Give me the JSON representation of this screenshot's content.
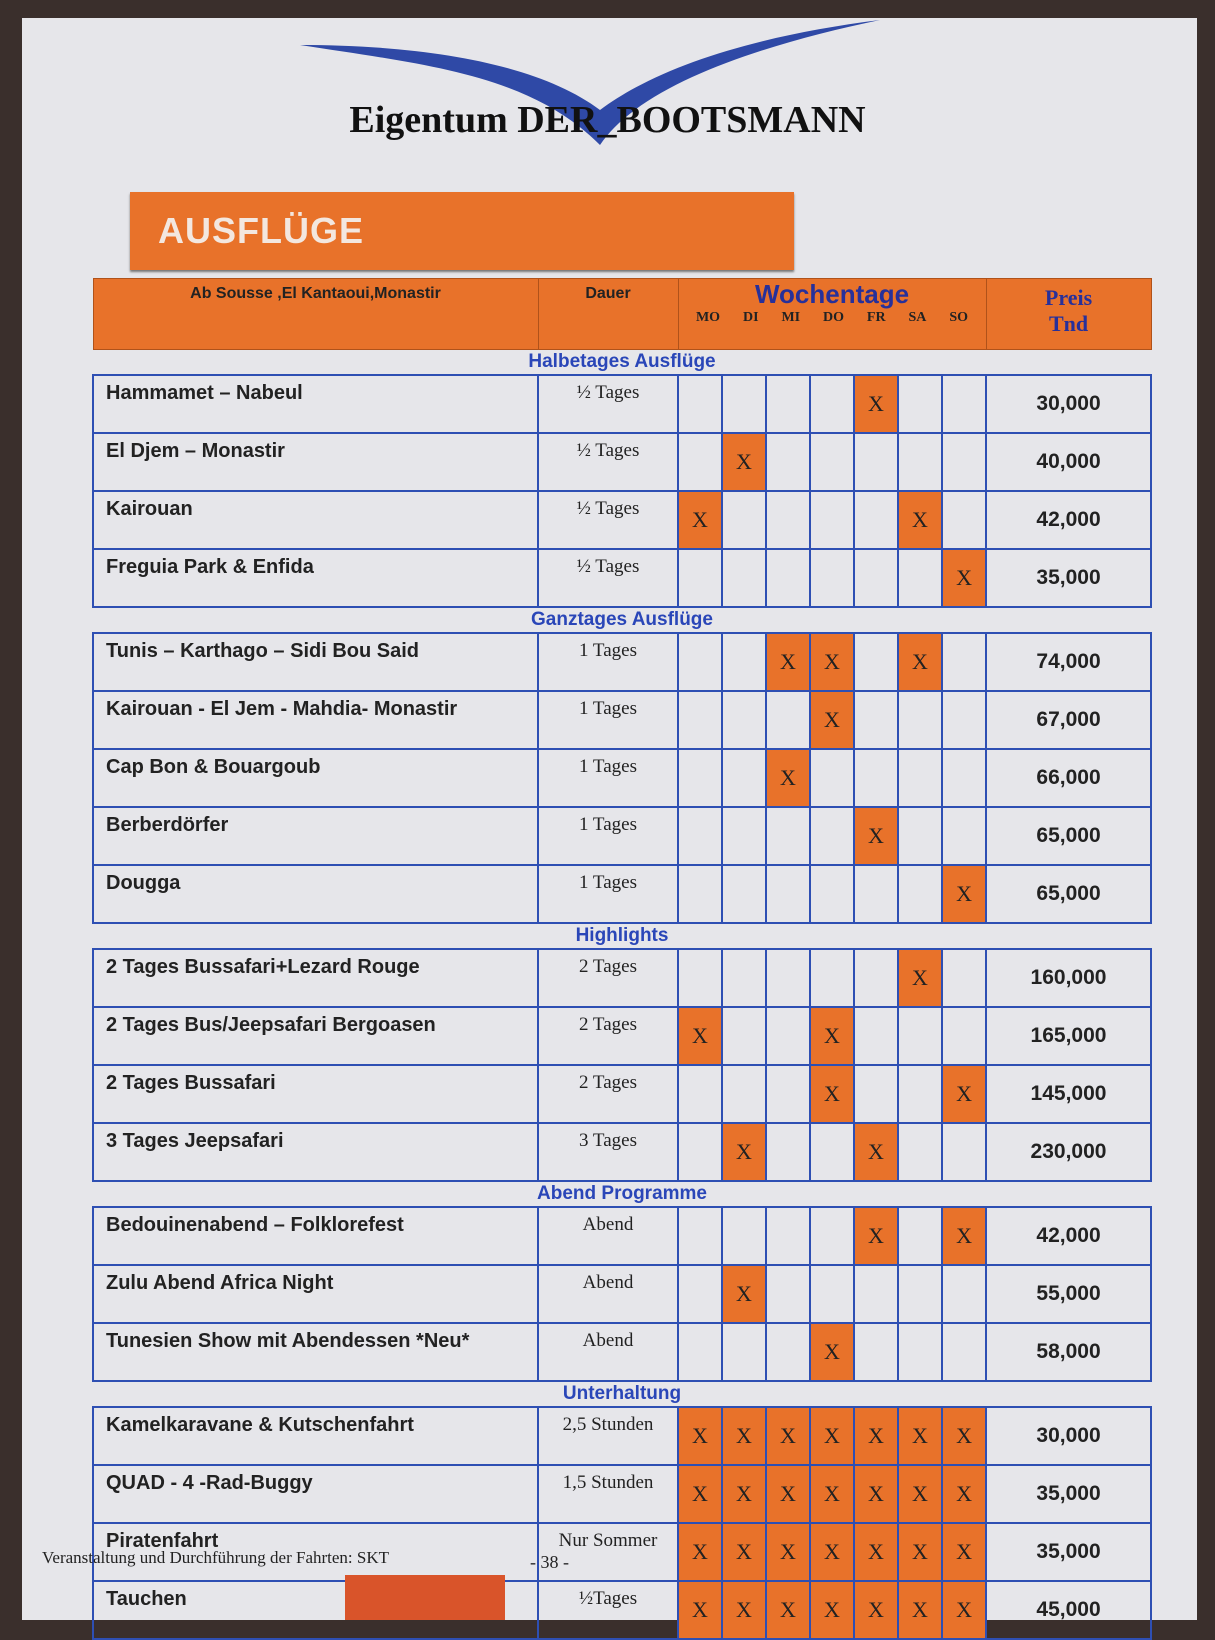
{
  "header": {
    "title": "Eigentum DER_BOOTSMANN",
    "banner": "AUSFLÜGE"
  },
  "columns": {
    "origin": "Ab Sousse ,El Kantaoui,Monastir",
    "duration": "Dauer",
    "weekdays": "Wochentage",
    "days": [
      "MO",
      "DI",
      "MI",
      "DO",
      "FR",
      "SA",
      "SO"
    ],
    "price_line1": "Preis",
    "price_line2": "Tnd"
  },
  "colors": {
    "accent": "#e8722a",
    "grid": "#2e4fb3",
    "section": "#2a46b8"
  },
  "sections": [
    {
      "title": "Halbetages Ausflüge",
      "rows": [
        {
          "name": "Hammamet – Nabeul",
          "duration": "½ Tages",
          "days": [
            "FR"
          ],
          "price": "30,000"
        },
        {
          "name": "El Djem – Monastir",
          "duration": "½ Tages",
          "days": [
            "DI"
          ],
          "price": "40,000"
        },
        {
          "name": "Kairouan",
          "duration": "½ Tages",
          "days": [
            "MO",
            "SA"
          ],
          "price": "42,000"
        },
        {
          "name": "Freguia Park & Enfida",
          "duration": "½ Tages",
          "days": [
            "SO"
          ],
          "price": "35,000"
        }
      ]
    },
    {
      "title": "Ganztages Ausflüge",
      "rows": [
        {
          "name": "Tunis – Karthago – Sidi Bou Said",
          "duration": "1 Tages",
          "days": [
            "MI",
            "DO",
            "SA"
          ],
          "price": "74,000"
        },
        {
          "name": "Kairouan - El Jem - Mahdia- Monastir",
          "duration": "1 Tages",
          "days": [
            "DO"
          ],
          "price": "67,000"
        },
        {
          "name": "Cap Bon & Bouargoub",
          "duration": "1 Tages",
          "days": [
            "MI"
          ],
          "price": "66,000"
        },
        {
          "name": "Berberdörfer",
          "duration": "1 Tages",
          "days": [
            "FR"
          ],
          "price": "65,000"
        },
        {
          "name": "Dougga",
          "duration": "1 Tages",
          "days": [
            "SO"
          ],
          "price": "65,000"
        }
      ]
    },
    {
      "title": "Highlights",
      "rows": [
        {
          "name": "2 Tages Bussafari+Lezard Rouge",
          "duration": "2 Tages",
          "days": [
            "SA"
          ],
          "price": "160,000"
        },
        {
          "name": "2 Tages Bus/Jeepsafari Bergoasen",
          "duration": "2 Tages",
          "days": [
            "MO",
            "DO"
          ],
          "price": "165,000"
        },
        {
          "name": "2 Tages Bussafari",
          "duration": "2 Tages",
          "days": [
            "DO",
            "SO"
          ],
          "price": "145,000"
        },
        {
          "name": "3 Tages Jeepsafari",
          "duration": "3 Tages",
          "days": [
            "DI",
            "FR"
          ],
          "price": "230,000"
        }
      ]
    },
    {
      "title": "Abend Programme",
      "rows": [
        {
          "name": "Bedouinenabend – Folklorefest",
          "duration": "Abend",
          "days": [
            "FR",
            "SO"
          ],
          "price": "42,000"
        },
        {
          "name": "Zulu Abend Africa Night",
          "duration": "Abend",
          "days": [
            "DI"
          ],
          "price": "55,000"
        },
        {
          "name": "Tunesien Show mit Abendessen *Neu*",
          "duration": "Abend",
          "days": [
            "DO"
          ],
          "price": "58,000"
        }
      ]
    },
    {
      "title": "Unterhaltung",
      "rows": [
        {
          "name": "Kamelkaravane & Kutschenfahrt",
          "duration": "2,5 Stunden",
          "days": [
            "MO",
            "DI",
            "MI",
            "DO",
            "FR",
            "SA",
            "SO"
          ],
          "price": "30,000"
        },
        {
          "name": "QUAD - 4 -Rad-Buggy",
          "duration": "1,5 Stunden",
          "days": [
            "MO",
            "DI",
            "MI",
            "DO",
            "FR",
            "SA",
            "SO"
          ],
          "price": "35,000"
        },
        {
          "name": "Piratenfahrt",
          "duration": "Nur Sommer",
          "days": [
            "MO",
            "DI",
            "MI",
            "DO",
            "FR",
            "SA",
            "SO"
          ],
          "price": "35,000"
        },
        {
          "name": "Tauchen",
          "duration": "½Tages",
          "days": [
            "MO",
            "DI",
            "MI",
            "DO",
            "FR",
            "SA",
            "SO"
          ],
          "price": "45,000"
        }
      ]
    }
  ],
  "mark": "X",
  "footer": {
    "text": "Veranstaltung und Durchführung der Fahrten: SKT",
    "page": "- 38 -"
  }
}
